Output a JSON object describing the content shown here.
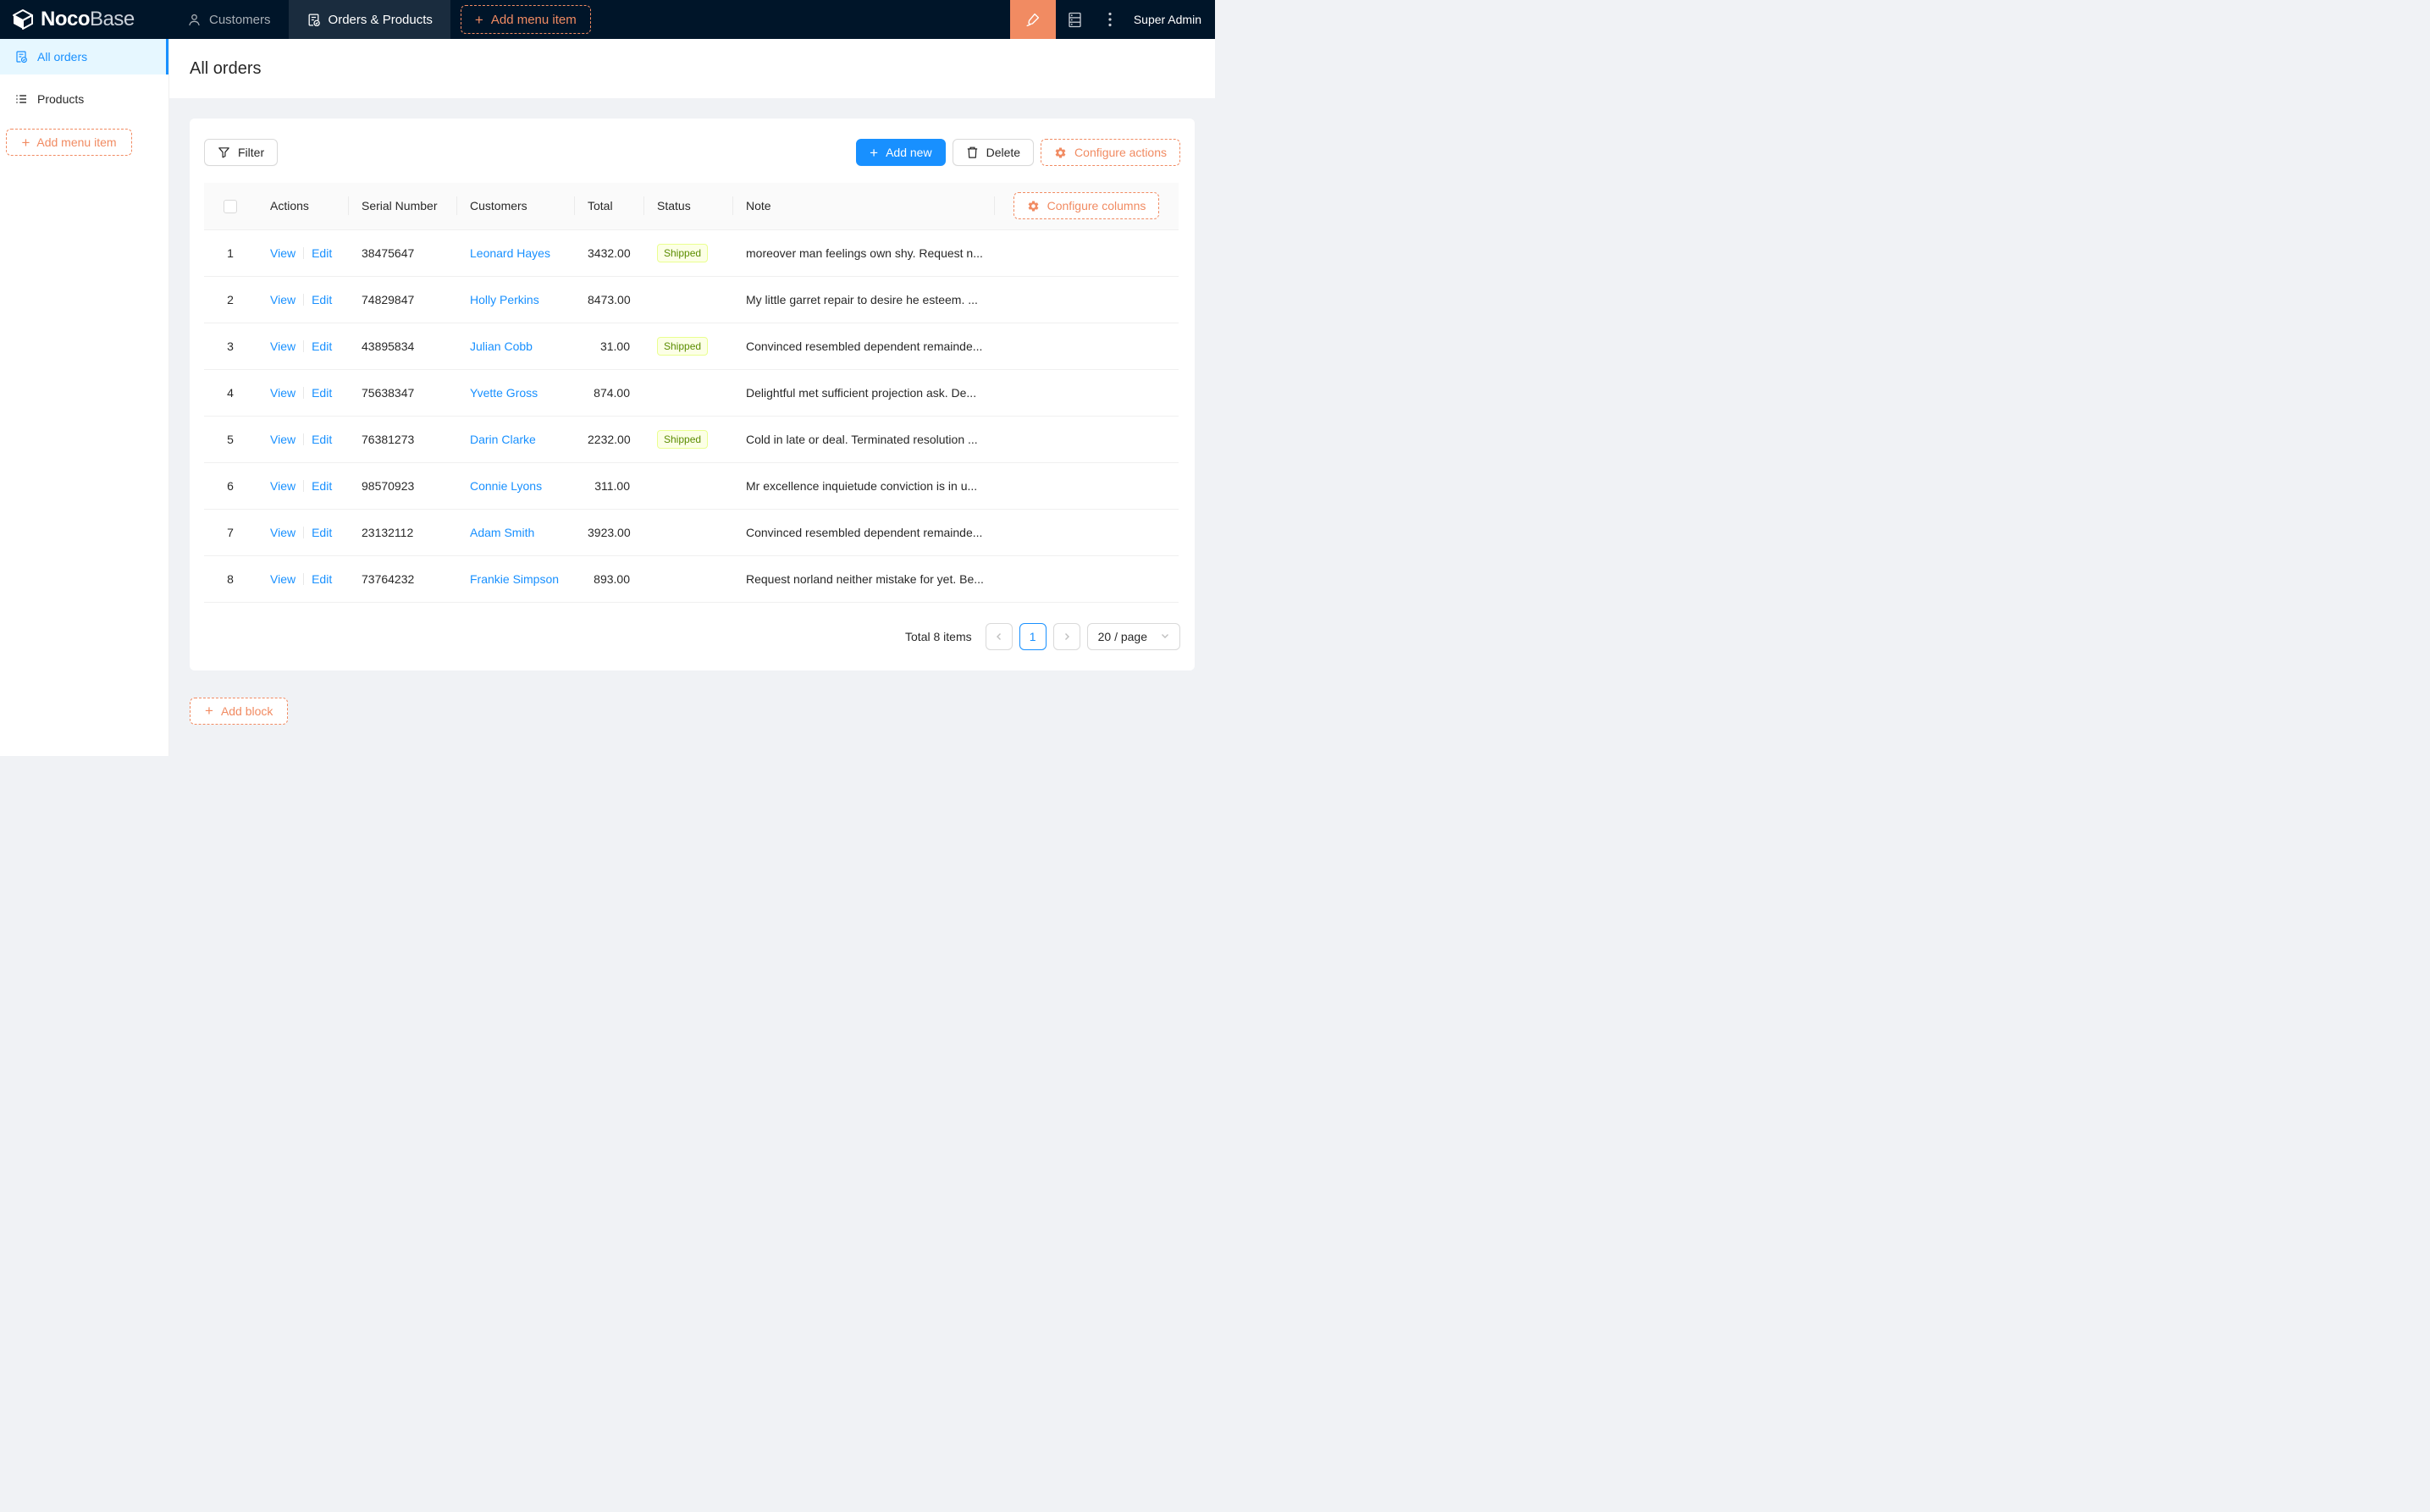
{
  "navbar": {
    "logo_bold": "Noco",
    "logo_light": "Base",
    "items": [
      {
        "label": "Customers"
      },
      {
        "label": "Orders & Products"
      }
    ],
    "add_menu_item_label": "Add menu item",
    "user": "Super Admin"
  },
  "sidebar": {
    "items": [
      {
        "label": "All orders"
      },
      {
        "label": "Products"
      }
    ],
    "add_menu_item_label": "Add menu item"
  },
  "page": {
    "title": "All orders"
  },
  "toolbar": {
    "filter_label": "Filter",
    "add_new_label": "Add new",
    "delete_label": "Delete",
    "configure_actions_label": "Configure actions"
  },
  "table": {
    "configure_columns_label": "Configure columns",
    "columns": [
      "Actions",
      "Serial Number",
      "Customers",
      "Total",
      "Status",
      "Note"
    ],
    "link_labels": {
      "view": "View",
      "edit": "Edit"
    },
    "rows": [
      {
        "index": "1",
        "serial": "38475647",
        "customer": "Leonard Hayes",
        "total": "3432.00",
        "status": "Shipped",
        "note": "moreover man feelings own shy. Request n..."
      },
      {
        "index": "2",
        "serial": "74829847",
        "customer": "Holly Perkins",
        "total": "8473.00",
        "status": "",
        "note": "My little garret repair to desire he esteem. ..."
      },
      {
        "index": "3",
        "serial": "43895834",
        "customer": "Julian Cobb",
        "total": "31.00",
        "status": "Shipped",
        "note": "Convinced resembled dependent remainde..."
      },
      {
        "index": "4",
        "serial": "75638347",
        "customer": "Yvette Gross",
        "total": "874.00",
        "status": "",
        "note": "Delightful met sufficient projection ask. De..."
      },
      {
        "index": "5",
        "serial": "76381273",
        "customer": "Darin Clarke",
        "total": "2232.00",
        "status": "Shipped",
        "note": "Cold in late or deal. Terminated resolution ..."
      },
      {
        "index": "6",
        "serial": "98570923",
        "customer": "Connie Lyons",
        "total": "311.00",
        "status": "",
        "note": "Mr excellence inquietude conviction is in u..."
      },
      {
        "index": "7",
        "serial": "23132112",
        "customer": "Adam Smith",
        "total": "3923.00",
        "status": "",
        "note": "Convinced resembled dependent remainde..."
      },
      {
        "index": "8",
        "serial": "73764232",
        "customer": "Frankie Simpson",
        "total": "893.00",
        "status": "",
        "note": "Request norland neither mistake for yet. Be..."
      }
    ],
    "pagination": {
      "total_text": "Total 8 items",
      "current_page": "1",
      "page_size": "20 / page"
    }
  },
  "footer": {
    "add_block_label": "Add block"
  },
  "colors": {
    "navbar_bg": "#001529",
    "accent_orange": "#f18b62",
    "primary_blue": "#1890ff",
    "sidebar_active_bg": "#e6f7ff",
    "tag_shipped_bg": "#fcffe6",
    "tag_shipped_border": "#eaff8f",
    "tag_shipped_text": "#5b8c00"
  }
}
